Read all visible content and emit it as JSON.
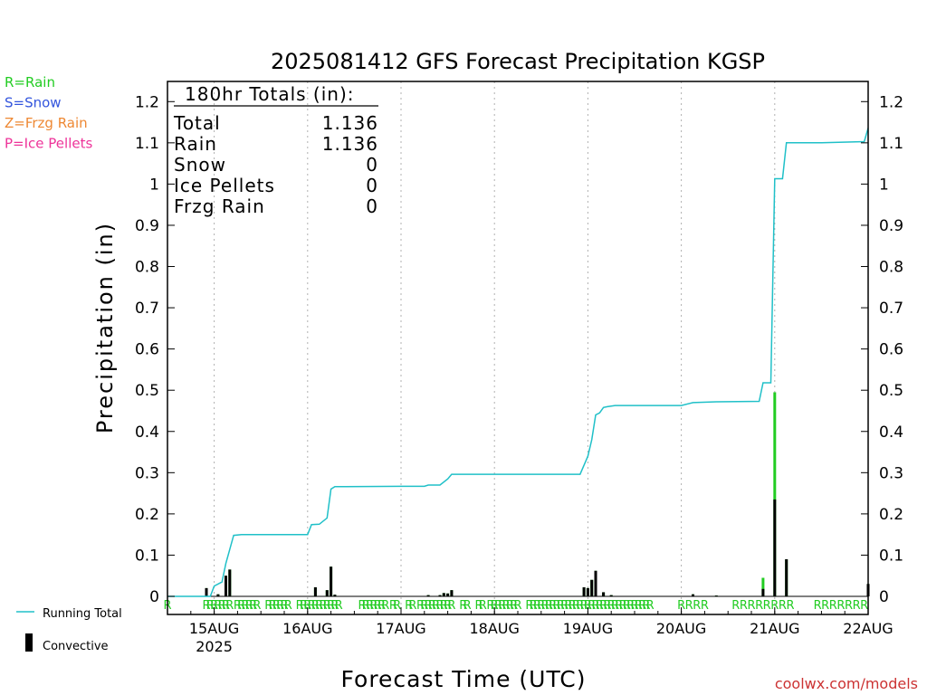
{
  "chart_data": {
    "type": "bar",
    "title": "2025081412 GFS Forecast Precipitation KGSP",
    "xlabel": "Forecast Time (UTC)",
    "ylabel": "Precipitation (in)",
    "ylim": [
      0,
      1.25
    ],
    "yticks": [
      "0",
      "0.1",
      "0.2",
      "0.3",
      "0.4",
      "0.5",
      "0.6",
      "0.7",
      "0.8",
      "0.9",
      "1",
      "1.1",
      "1.2"
    ],
    "grid": "dotted vertical at day boundaries",
    "x_start": "2025-08-14 12Z",
    "x_end": "2025-08-22 00Z",
    "day_ticks": [
      {
        "label": "15AUG",
        "sub": "2025",
        "time": "2025-08-15 00Z"
      },
      {
        "label": "16AUG",
        "sub": "",
        "time": "2025-08-16 00Z"
      },
      {
        "label": "17AUG",
        "sub": "",
        "time": "2025-08-17 00Z"
      },
      {
        "label": "18AUG",
        "sub": "",
        "time": "2025-08-18 00Z"
      },
      {
        "label": "19AUG",
        "sub": "",
        "time": "2025-08-19 00Z"
      },
      {
        "label": "20AUG",
        "sub": "",
        "time": "2025-08-20 00Z"
      },
      {
        "label": "21AUG",
        "sub": "",
        "time": "2025-08-21 00Z"
      },
      {
        "label": "22AUG",
        "sub": "",
        "time": "2025-08-22 00Z"
      }
    ],
    "precip_type_legend": [
      {
        "text": "R=Rain",
        "color": "#22cc22"
      },
      {
        "text": "S=Snow",
        "color": "#3355dd"
      },
      {
        "text": "Z=Frzg Rain",
        "color": "#ee8833"
      },
      {
        "text": "P=Ice Pellets",
        "color": "#ee3399"
      }
    ],
    "series_legend": [
      {
        "text": "Running Total",
        "color": "#20c0c8",
        "kind": "line"
      },
      {
        "text": "Convective",
        "color": "#000000",
        "kind": "bar"
      }
    ],
    "totals_box": {
      "heading": "180hr Totals (in):",
      "rows": [
        {
          "label": "Total",
          "value": "1.136"
        },
        {
          "label": "Rain",
          "value": "1.136"
        },
        {
          "label": "Snow",
          "value": "0"
        },
        {
          "label": "Ice Pellets",
          "value": "0"
        },
        {
          "label": "Frzg Rain",
          "value": "0"
        }
      ]
    },
    "precip_bars": [
      {
        "time": "2025-08-14 22Z",
        "total": 0.02,
        "convective": 0.02
      },
      {
        "time": "2025-08-15 01Z",
        "total": 0.005,
        "convective": 0.005
      },
      {
        "time": "2025-08-15 03Z",
        "total": 0.05,
        "convective": 0.05
      },
      {
        "time": "2025-08-15 04Z",
        "total": 0.065,
        "convective": 0.065
      },
      {
        "time": "2025-08-16 02Z",
        "total": 0.022,
        "convective": 0.022
      },
      {
        "time": "2025-08-16 05Z",
        "total": 0.015,
        "convective": 0.015
      },
      {
        "time": "2025-08-16 06Z",
        "total": 0.072,
        "convective": 0.072
      },
      {
        "time": "2025-08-16 07Z",
        "total": 0.004,
        "convective": 0.004
      },
      {
        "time": "2025-08-17 07Z",
        "total": 0.003,
        "convective": 0.003
      },
      {
        "time": "2025-08-17 10Z",
        "total": 0.003,
        "convective": 0.003
      },
      {
        "time": "2025-08-17 11Z",
        "total": 0.008,
        "convective": 0.008
      },
      {
        "time": "2025-08-17 12Z",
        "total": 0.007,
        "convective": 0.007
      },
      {
        "time": "2025-08-17 13Z",
        "total": 0.015,
        "convective": 0.015
      },
      {
        "time": "2025-08-18 23Z",
        "total": 0.022,
        "convective": 0.022
      },
      {
        "time": "2025-08-19 00Z",
        "total": 0.02,
        "convective": 0.02
      },
      {
        "time": "2025-08-19 01Z",
        "total": 0.04,
        "convective": 0.04
      },
      {
        "time": "2025-08-19 02Z",
        "total": 0.062,
        "convective": 0.062
      },
      {
        "time": "2025-08-19 04Z",
        "total": 0.01,
        "convective": 0.01
      },
      {
        "time": "2025-08-19 06Z",
        "total": 0.003,
        "convective": 0.003
      },
      {
        "time": "2025-08-20 03Z",
        "total": 0.005,
        "convective": 0.005
      },
      {
        "time": "2025-08-20 09Z",
        "total": 0.002,
        "convective": 0.002
      },
      {
        "time": "2025-08-20 21Z",
        "total": 0.045,
        "convective": 0.018
      },
      {
        "time": "2025-08-21 00Z",
        "total": 0.495,
        "convective": 0.235
      },
      {
        "time": "2025-08-21 03Z",
        "total": 0.09,
        "convective": 0.09
      },
      {
        "time": "2025-08-22 00Z",
        "total": 0.03,
        "convective": 0.03
      }
    ],
    "running_total": [
      [
        "2025-08-14 12Z",
        0
      ],
      [
        "2025-08-14 23Z",
        0
      ],
      [
        "2025-08-15 00Z",
        0.025
      ],
      [
        "2025-08-15 02Z",
        0.035
      ],
      [
        "2025-08-15 03Z",
        0.08
      ],
      [
        "2025-08-15 05Z",
        0.148
      ],
      [
        "2025-08-15 07Z",
        0.15
      ],
      [
        "2025-08-16 00Z",
        0.15
      ],
      [
        "2025-08-16 01Z",
        0.174
      ],
      [
        "2025-08-16 03Z",
        0.175
      ],
      [
        "2025-08-16 05Z",
        0.19
      ],
      [
        "2025-08-16 06Z",
        0.26
      ],
      [
        "2025-08-16 07Z",
        0.266
      ],
      [
        "2025-08-17 00Z",
        0.267
      ],
      [
        "2025-08-17 06Z",
        0.267
      ],
      [
        "2025-08-17 07Z",
        0.27
      ],
      [
        "2025-08-17 10Z",
        0.27
      ],
      [
        "2025-08-17 12Z",
        0.285
      ],
      [
        "2025-08-17 13Z",
        0.296
      ],
      [
        "2025-08-18 22Z",
        0.296
      ],
      [
        "2025-08-19 00Z",
        0.34
      ],
      [
        "2025-08-19 01Z",
        0.38
      ],
      [
        "2025-08-19 02Z",
        0.44
      ],
      [
        "2025-08-19 03Z",
        0.445
      ],
      [
        "2025-08-19 04Z",
        0.458
      ],
      [
        "2025-08-19 05Z",
        0.46
      ],
      [
        "2025-08-19 07Z",
        0.463
      ],
      [
        "2025-08-20 00Z",
        0.463
      ],
      [
        "2025-08-20 03Z",
        0.47
      ],
      [
        "2025-08-20 09Z",
        0.472
      ],
      [
        "2025-08-20 20Z",
        0.473
      ],
      [
        "2025-08-20 21Z",
        0.518
      ],
      [
        "2025-08-20 23Z",
        0.518
      ],
      [
        "2025-08-21 00Z",
        1.013
      ],
      [
        "2025-08-21 02Z",
        1.013
      ],
      [
        "2025-08-21 03Z",
        1.1
      ],
      [
        "2025-08-21 12Z",
        1.1
      ],
      [
        "2025-08-21 23Z",
        1.103
      ],
      [
        "2025-08-22 00Z",
        1.136
      ]
    ],
    "type_marker_times": [
      "2025-08-14 12Z",
      "2025-08-14 22Z",
      "2025-08-14 23Z",
      "2025-08-15 00Z",
      "2025-08-15 01Z",
      "2025-08-15 02Z",
      "2025-08-15 03Z",
      "2025-08-15 04Z",
      "2025-08-15 06Z",
      "2025-08-15 07Z",
      "2025-08-15 08Z",
      "2025-08-15 09Z",
      "2025-08-15 10Z",
      "2025-08-15 11Z",
      "2025-08-15 14Z",
      "2025-08-15 15Z",
      "2025-08-15 16Z",
      "2025-08-15 17Z",
      "2025-08-15 18Z",
      "2025-08-15 19Z",
      "2025-08-15 22Z",
      "2025-08-15 23Z",
      "2025-08-16 00Z",
      "2025-08-16 01Z",
      "2025-08-16 02Z",
      "2025-08-16 03Z",
      "2025-08-16 04Z",
      "2025-08-16 05Z",
      "2025-08-16 06Z",
      "2025-08-16 07Z",
      "2025-08-16 08Z",
      "2025-08-16 14Z",
      "2025-08-16 15Z",
      "2025-08-16 16Z",
      "2025-08-16 17Z",
      "2025-08-16 18Z",
      "2025-08-16 19Z",
      "2025-08-16 20Z",
      "2025-08-16 22Z",
      "2025-08-16 23Z",
      "2025-08-17 02Z",
      "2025-08-17 03Z",
      "2025-08-17 05Z",
      "2025-08-17 06Z",
      "2025-08-17 07Z",
      "2025-08-17 08Z",
      "2025-08-17 09Z",
      "2025-08-17 10Z",
      "2025-08-17 11Z",
      "2025-08-17 12Z",
      "2025-08-17 13Z",
      "2025-08-17 16Z",
      "2025-08-17 17Z",
      "2025-08-17 20Z",
      "2025-08-17 21Z",
      "2025-08-17 23Z",
      "2025-08-18 00Z",
      "2025-08-18 01Z",
      "2025-08-18 02Z",
      "2025-08-18 03Z",
      "2025-08-18 04Z",
      "2025-08-18 05Z",
      "2025-08-18 06Z",
      "2025-08-18 09Z",
      "2025-08-18 10Z",
      "2025-08-18 11Z",
      "2025-08-18 12Z",
      "2025-08-18 13Z",
      "2025-08-18 14Z",
      "2025-08-18 15Z",
      "2025-08-18 16Z",
      "2025-08-18 17Z",
      "2025-08-18 18Z",
      "2025-08-18 19Z",
      "2025-08-18 20Z",
      "2025-08-18 21Z",
      "2025-08-18 22Z",
      "2025-08-18 23Z",
      "2025-08-19 00Z",
      "2025-08-19 01Z",
      "2025-08-19 02Z",
      "2025-08-19 03Z",
      "2025-08-19 04Z",
      "2025-08-19 05Z",
      "2025-08-19 06Z",
      "2025-08-19 07Z",
      "2025-08-19 08Z",
      "2025-08-19 09Z",
      "2025-08-19 10Z",
      "2025-08-19 11Z",
      "2025-08-19 12Z",
      "2025-08-19 13Z",
      "2025-08-19 14Z",
      "2025-08-19 15Z",
      "2025-08-19 16Z",
      "2025-08-20 00Z",
      "2025-08-20 02Z",
      "2025-08-20 04Z",
      "2025-08-20 06Z",
      "2025-08-20 14Z",
      "2025-08-20 16Z",
      "2025-08-20 18Z",
      "2025-08-20 20Z",
      "2025-08-20 22Z",
      "2025-08-21 00Z",
      "2025-08-21 02Z",
      "2025-08-21 04Z",
      "2025-08-21 11Z",
      "2025-08-21 13Z",
      "2025-08-21 15Z",
      "2025-08-21 17Z",
      "2025-08-21 19Z",
      "2025-08-21 21Z",
      "2025-08-21 23Z"
    ],
    "type_marker_letter": "R",
    "colors": {
      "running_total": "#20c0c8",
      "rain_bar": "#22cc22",
      "convective_bar": "#000000",
      "rain_marker": "#22cc22",
      "grid": "#b0b0b0"
    }
  },
  "credit": "coolwx.com/models",
  "credit_color": "#cc3333"
}
